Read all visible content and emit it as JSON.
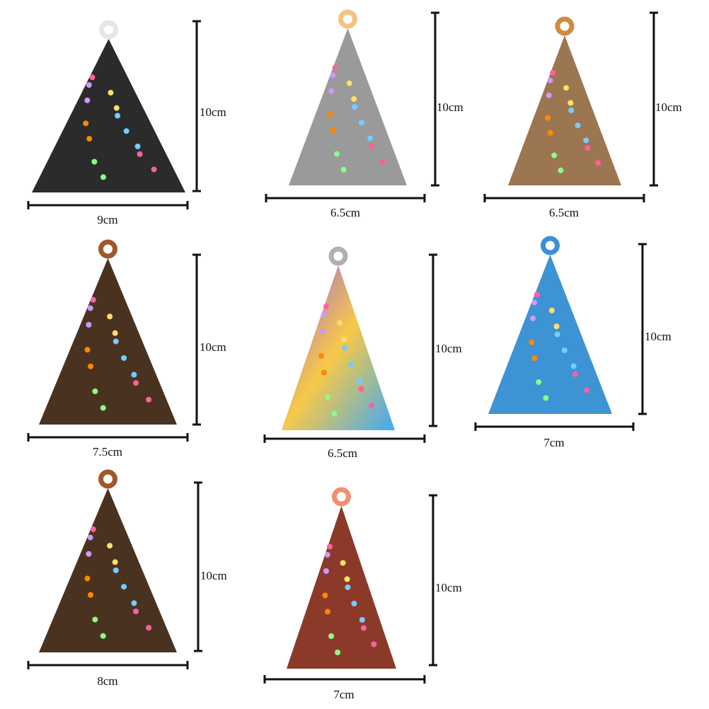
{
  "items": [
    {
      "height": "10cm",
      "width": "9cm"
    },
    {
      "height": "10cm",
      "width": "6.5cm"
    },
    {
      "height": "10cm",
      "width": "6.5cm"
    },
    {
      "height": "10cm",
      "width": "7.5cm"
    },
    {
      "height": "10cm",
      "width": "6.5cm"
    },
    {
      "height": "10cm",
      "width": "7cm"
    },
    {
      "height": "10cm",
      "width": "8cm"
    },
    {
      "height": "10cm",
      "width": "7cm"
    }
  ]
}
